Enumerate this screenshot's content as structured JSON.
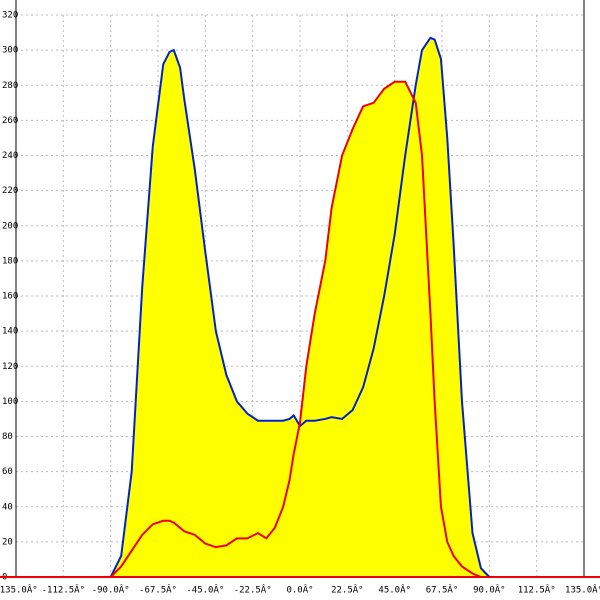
{
  "chart_data": {
    "type": "line",
    "x": [
      -90,
      -85,
      -80,
      -75,
      -70,
      -65,
      -62,
      -60,
      -57,
      -55,
      -50,
      -45,
      -40,
      -35,
      -30,
      -25,
      -20,
      -16,
      -12,
      -8,
      -5,
      -3,
      0,
      3,
      7,
      12,
      15,
      20,
      25,
      30,
      35,
      40,
      45,
      50,
      55,
      58,
      62,
      64,
      67,
      70,
      73,
      77,
      82,
      86,
      90
    ],
    "series": [
      {
        "name": "Blue",
        "color": "#0022cc",
        "values": [
          0,
          12,
          60,
          165,
          245,
          292,
          299,
          300,
          290,
          272,
          232,
          185,
          140,
          115,
          100,
          93,
          89,
          89,
          89,
          89,
          90,
          92,
          86,
          89,
          89,
          90,
          91,
          90,
          95,
          108,
          130,
          160,
          195,
          240,
          280,
          300,
          307,
          306,
          295,
          250,
          190,
          100,
          25,
          5,
          0
        ]
      },
      {
        "name": "Red",
        "color": "#ee0000",
        "values": [
          0,
          6,
          15,
          24,
          30,
          32,
          32,
          31,
          28,
          26,
          24,
          19,
          17,
          18,
          22,
          22,
          25,
          22,
          28,
          40,
          55,
          70,
          88,
          120,
          150,
          180,
          210,
          240,
          255,
          268,
          270,
          278,
          282,
          282,
          270,
          240,
          150,
          100,
          40,
          20,
          12,
          6,
          2,
          0,
          0
        ]
      }
    ],
    "fill_color": "#ffff00",
    "xlim": [
      -135,
      135
    ],
    "ylim": [
      0,
      320
    ],
    "xticks": [
      {
        "value": -135,
        "label": "-135.0Â°"
      },
      {
        "value": -112.5,
        "label": "-112.5Â°"
      },
      {
        "value": -90,
        "label": "-90.0Â°"
      },
      {
        "value": -67.5,
        "label": "-67.5Â°"
      },
      {
        "value": -45,
        "label": "-45.0Â°"
      },
      {
        "value": -22.5,
        "label": "-22.5Â°"
      },
      {
        "value": 0,
        "label": "0.0Â°"
      },
      {
        "value": 22.5,
        "label": "22.5Â°"
      },
      {
        "value": 45,
        "label": "45.0Â°"
      },
      {
        "value": 67.5,
        "label": "67.5Â°"
      },
      {
        "value": 90,
        "label": "90.0Â°"
      },
      {
        "value": 112.5,
        "label": "112.5Â°"
      },
      {
        "value": 135,
        "label": "135.0Â°"
      }
    ],
    "yticks": [
      0,
      20,
      40,
      60,
      80,
      100,
      120,
      140,
      160,
      180,
      200,
      220,
      240,
      260,
      280,
      300,
      320
    ],
    "grid": true
  }
}
